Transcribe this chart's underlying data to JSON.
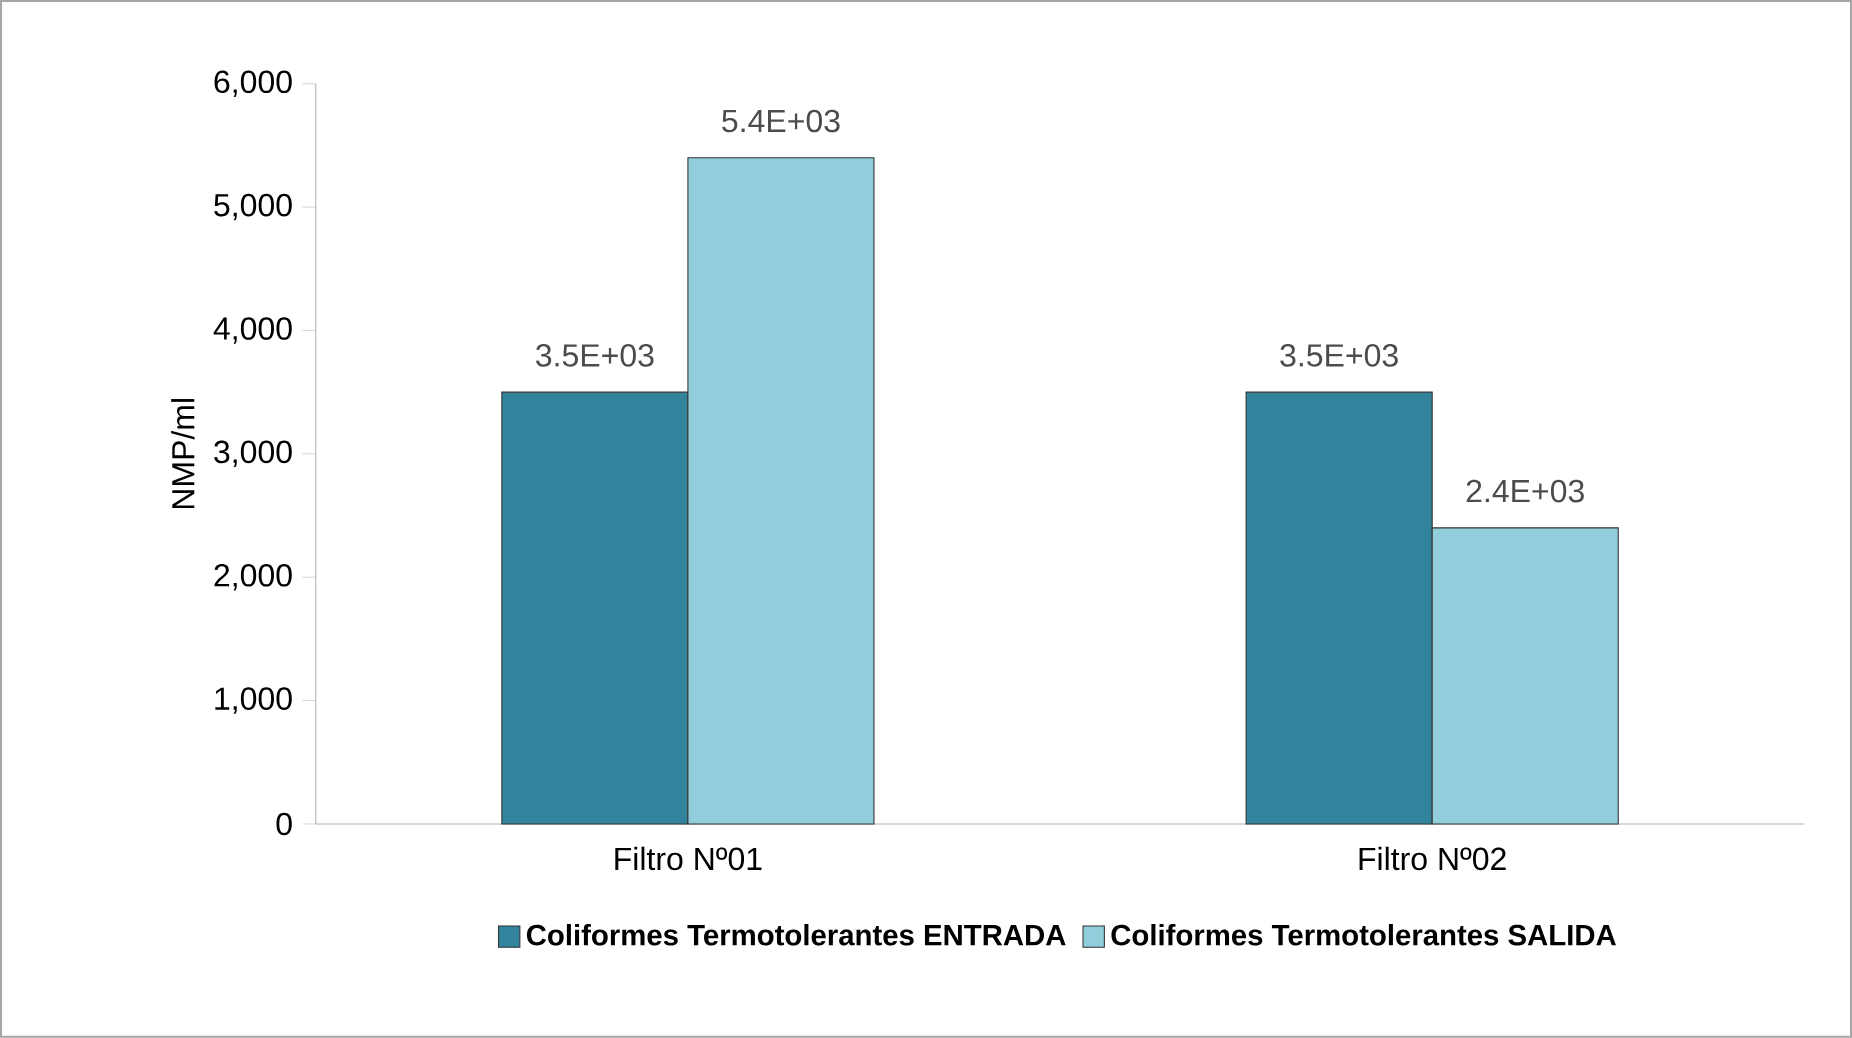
{
  "chart_data": {
    "type": "bar",
    "ylabel": "NMP/ml",
    "categories": [
      "Filtro Nº01",
      "Filtro Nº02"
    ],
    "series": [
      {
        "name": "Coliformes Termotolerantes ENTRADA",
        "color": "#31849b",
        "values": [
          3500,
          3500
        ],
        "value_labels": [
          "3.5E+03",
          "3.5E+03"
        ]
      },
      {
        "name": "Coliformes Termotolerantes SALIDA",
        "color": "#92cddc",
        "values": [
          5400,
          2400
        ],
        "value_labels": [
          "5.4E+03",
          "2.4E+03"
        ]
      }
    ],
    "ylim": [
      0,
      6000
    ],
    "yticks": [
      0,
      {
        "value": 1000,
        "label": "1,000"
      },
      {
        "value": 2000,
        "label": "2,000"
      },
      {
        "value": 3000,
        "label": "3,000"
      },
      {
        "value": 4000,
        "label": "4,000"
      },
      {
        "value": 5000,
        "label": "5,000"
      },
      {
        "value": 6000,
        "label": "6,000"
      }
    ],
    "grid": false,
    "legend": "bottom"
  }
}
